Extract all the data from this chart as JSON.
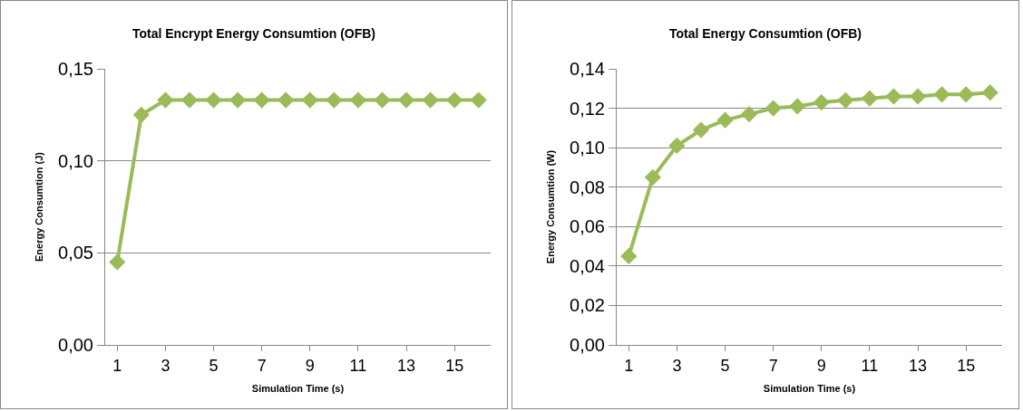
{
  "chart_data": [
    {
      "type": "line",
      "title": "Total Encrypt Energy Consumtion (OFB)",
      "xlabel": "Simulation Time (s)",
      "ylabel": "Energy Consumtion (J)",
      "x": [
        1,
        2,
        3,
        4,
        5,
        6,
        7,
        8,
        9,
        10,
        11,
        12,
        13,
        14,
        15,
        16
      ],
      "series": [
        {
          "color": "#9bbb59",
          "values": [
            0.045,
            0.125,
            0.133,
            0.133,
            0.133,
            0.133,
            0.133,
            0.133,
            0.133,
            0.133,
            0.133,
            0.133,
            0.133,
            0.133,
            0.133,
            0.133
          ]
        }
      ],
      "xlim": [
        0.5,
        16.5
      ],
      "xticks": [
        1,
        3,
        5,
        7,
        9,
        11,
        13,
        15
      ],
      "ylim": [
        0,
        0.15
      ],
      "yticks": [
        {
          "value": 0,
          "label": "0,00"
        },
        {
          "value": 0.05,
          "label": "0,05"
        },
        {
          "value": 0.1,
          "label": "0,10"
        },
        {
          "value": 0.15,
          "label": "0,15"
        }
      ],
      "grid": "y",
      "marker": "diamond",
      "line_style": "solid"
    },
    {
      "type": "line",
      "title": "Total Energy Consumtion (OFB)",
      "xlabel": "Simulation Time (s)",
      "ylabel": "Energy Consumtion (W)",
      "x": [
        1,
        2,
        3,
        4,
        5,
        6,
        7,
        8,
        9,
        10,
        11,
        12,
        13,
        14,
        15,
        16
      ],
      "series": [
        {
          "color": "#9bbb59",
          "values": [
            0.045,
            0.085,
            0.101,
            0.109,
            0.114,
            0.117,
            0.12,
            0.121,
            0.123,
            0.124,
            0.125,
            0.126,
            0.126,
            0.127,
            0.127,
            0.128
          ]
        }
      ],
      "xlim": [
        0.5,
        16.5
      ],
      "xticks": [
        1,
        3,
        5,
        7,
        9,
        11,
        13,
        15
      ],
      "ylim": [
        0,
        0.14
      ],
      "yticks": [
        {
          "value": 0,
          "label": "0,00"
        },
        {
          "value": 0.02,
          "label": "0,02"
        },
        {
          "value": 0.04,
          "label": "0,04"
        },
        {
          "value": 0.06,
          "label": "0,06"
        },
        {
          "value": 0.08,
          "label": "0,08"
        },
        {
          "value": 0.1,
          "label": "0,10"
        },
        {
          "value": 0.12,
          "label": "0,12"
        },
        {
          "value": 0.14,
          "label": "0,14"
        }
      ],
      "grid": "y",
      "marker": "diamond",
      "line_style": "solid"
    }
  ]
}
